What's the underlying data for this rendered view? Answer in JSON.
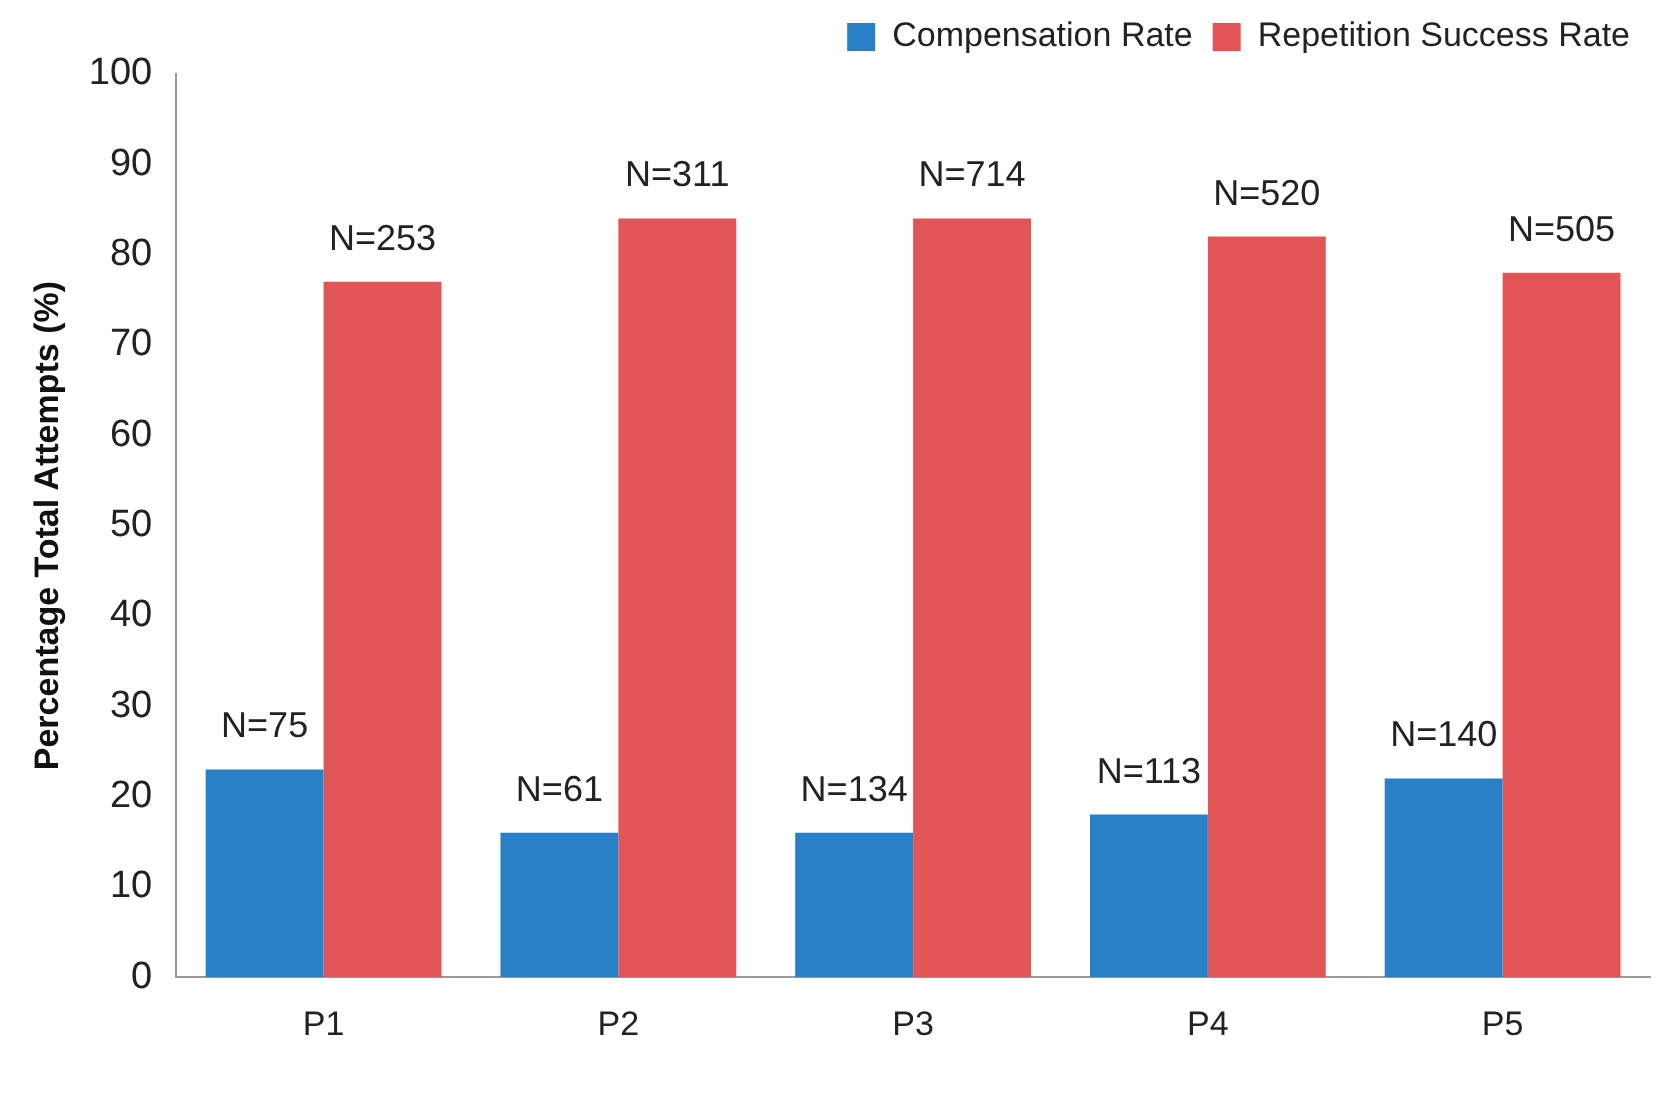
{
  "chart_data": {
    "type": "bar",
    "ylabel": "Percentage Total Attempts (%)",
    "categories": [
      "P1",
      "P2",
      "P3",
      "P4",
      "P5"
    ],
    "series": [
      {
        "name": "Compensation Rate",
        "color": "#2a80c6",
        "values": [
          23,
          16,
          16,
          18,
          22
        ]
      },
      {
        "name": "Repetition Success Rate",
        "color": "#e15556",
        "values": [
          77,
          84,
          84,
          82,
          78
        ]
      }
    ],
    "annotations": [
      {
        "text": "N=75",
        "x": "P1",
        "y": 23
      },
      {
        "text": "N=61",
        "x": "P2",
        "y": 16
      },
      {
        "text": "N=134",
        "x": "P3",
        "y": 16
      },
      {
        "text": "N=113",
        "x": "P4",
        "y": 18
      },
      {
        "text": "N=140",
        "x": "P5",
        "y": 22
      },
      {
        "text": "N=253",
        "x": "P1",
        "y": 77
      },
      {
        "text": "N=311",
        "x": "P2",
        "y": 84
      },
      {
        "text": "N=714",
        "x": "P3",
        "y": 84
      },
      {
        "text": "N=520",
        "x": "P4",
        "y": 82
      },
      {
        "text": "N=505",
        "x": "P5",
        "y": 78
      }
    ],
    "ylim": [
      0,
      100
    ],
    "yticks": [
      0,
      10,
      20,
      30,
      40,
      50,
      60,
      70,
      80,
      90,
      100
    ],
    "grid": false,
    "legend": "top right"
  }
}
